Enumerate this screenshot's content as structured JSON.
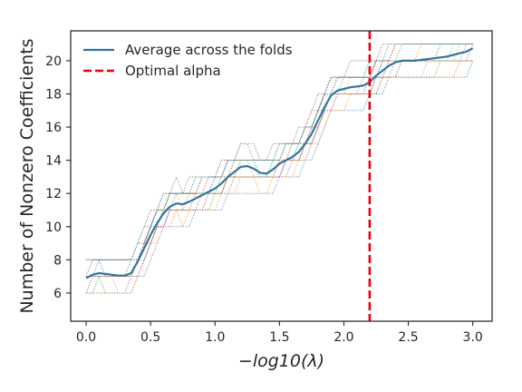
{
  "chart_data": {
    "type": "line",
    "title": "",
    "xlabel": "−log10(λ)",
    "ylabel": "Number of Nonzero Coefficients",
    "xlim": [
      -0.12,
      3.15
    ],
    "ylim": [
      4.3,
      21.8
    ],
    "xticks": [
      0.0,
      0.5,
      1.0,
      1.5,
      2.0,
      2.5,
      3.0
    ],
    "xtick_labels": [
      "0.0",
      "0.5",
      "1.0",
      "1.5",
      "2.0",
      "2.5",
      "3.0"
    ],
    "yticks": [
      6,
      8,
      10,
      12,
      14,
      16,
      18,
      20
    ],
    "ytick_labels": [
      "6",
      "8",
      "10",
      "12",
      "14",
      "16",
      "18",
      "20"
    ],
    "grid": false,
    "legend_position": "top-left",
    "series": [
      {
        "name": "Average across the folds",
        "style": "solid",
        "color": "#3274a1",
        "x": [
          0.0,
          0.05,
          0.1,
          0.15,
          0.2,
          0.25,
          0.3,
          0.35,
          0.4,
          0.45,
          0.5,
          0.55,
          0.6,
          0.65,
          0.7,
          0.75,
          0.8,
          0.85,
          0.9,
          0.95,
          1.0,
          1.05,
          1.1,
          1.15,
          1.2,
          1.25,
          1.3,
          1.35,
          1.4,
          1.45,
          1.5,
          1.55,
          1.6,
          1.65,
          1.7,
          1.75,
          1.8,
          1.85,
          1.9,
          1.95,
          2.0,
          2.05,
          2.1,
          2.15,
          2.2,
          2.25,
          2.3,
          2.35,
          2.4,
          2.45,
          2.5,
          2.55,
          2.6,
          2.65,
          2.7,
          2.75,
          2.8,
          2.85,
          2.9,
          2.95,
          3.0
        ],
        "y": [
          6.9,
          7.1,
          7.2,
          7.15,
          7.1,
          7.05,
          7.05,
          7.2,
          7.9,
          8.7,
          9.5,
          10.2,
          10.8,
          11.2,
          11.4,
          11.35,
          11.5,
          11.7,
          11.9,
          12.1,
          12.3,
          12.6,
          13.0,
          13.3,
          13.6,
          13.65,
          13.5,
          13.25,
          13.2,
          13.45,
          13.8,
          14.0,
          14.2,
          14.5,
          15.0,
          15.6,
          16.4,
          17.2,
          17.9,
          18.2,
          18.3,
          18.4,
          18.45,
          18.5,
          18.7,
          19.1,
          19.4,
          19.7,
          19.9,
          20.0,
          20.0,
          20.0,
          20.05,
          20.1,
          20.15,
          20.2,
          20.25,
          20.35,
          20.45,
          20.55,
          20.75
        ]
      },
      {
        "name": "Optimal alpha",
        "style": "dashed",
        "color": "#e8000b",
        "x": [
          2.2,
          2.2
        ],
        "y": [
          4.3,
          21.8
        ]
      }
    ],
    "fold_curves": {
      "style": "dotted",
      "colors": [
        "#1f77b4",
        "#ff7f0e",
        "#2ca02c",
        "#d62728",
        "#9467bd",
        "#8c564b",
        "#e377c2",
        "#7f7f7f",
        "#bcbd22",
        "#17becf",
        "#1f77b4",
        "#ff7f0e",
        "#2ca02c",
        "#d62728",
        "#9467bd",
        "#8c564b",
        "#e377c2",
        "#7f7f7f",
        "#bcbd22",
        "#17becf"
      ],
      "x": [
        0.0,
        0.05,
        0.1,
        0.15,
        0.2,
        0.25,
        0.3,
        0.35,
        0.4,
        0.45,
        0.5,
        0.55,
        0.6,
        0.65,
        0.7,
        0.75,
        0.8,
        0.85,
        0.9,
        0.95,
        1.0,
        1.05,
        1.1,
        1.15,
        1.2,
        1.25,
        1.3,
        1.35,
        1.4,
        1.45,
        1.5,
        1.55,
        1.6,
        1.65,
        1.7,
        1.75,
        1.8,
        1.85,
        1.9,
        1.95,
        2.0,
        2.05,
        2.1,
        2.15,
        2.2,
        2.25,
        2.3,
        2.35,
        2.4,
        2.45,
        2.5,
        2.55,
        2.6,
        2.65,
        2.7,
        2.75,
        2.8,
        2.85,
        2.9,
        2.95,
        3.0
      ],
      "offsets": [
        -1.2,
        -0.9,
        -0.7,
        -0.5,
        -0.35,
        -0.2,
        -0.1,
        0.0,
        0.1,
        0.2,
        0.3,
        0.45,
        0.6,
        0.75,
        0.9,
        1.1,
        -0.6,
        0.5,
        -0.3,
        0.8
      ]
    }
  },
  "legend": {
    "items": [
      {
        "label": "Average across the folds",
        "color": "#3274a1",
        "style": "solid"
      },
      {
        "label": "Optimal alpha",
        "color": "#e8000b",
        "style": "dashed"
      }
    ]
  }
}
